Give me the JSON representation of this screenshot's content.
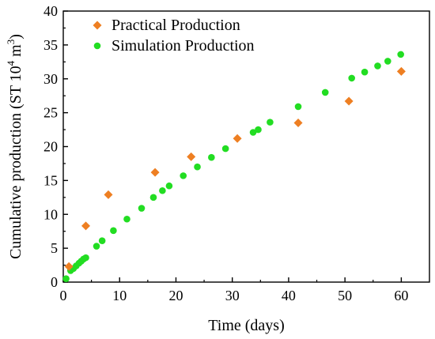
{
  "chart_data": {
    "type": "scatter",
    "xlabel": "Time (days)",
    "ylabel_main": "Cumulative production (ST 10",
    "ylabel_sup": "4",
    "ylabel_rest": " m",
    "ylabel_sup2": "3",
    "ylabel_close": ")",
    "xlim": [
      0,
      65
    ],
    "ylim": [
      0,
      40
    ],
    "x_ticks": [
      0,
      10,
      20,
      30,
      40,
      50,
      60
    ],
    "y_ticks": [
      0,
      5,
      10,
      15,
      20,
      25,
      30,
      35,
      40
    ],
    "grid": false,
    "legend_position": "top-left",
    "series": [
      {
        "name": "Practical Production",
        "marker": "diamond",
        "color": "#ee7f22",
        "points": [
          {
            "x": 1,
            "y": 2.3
          },
          {
            "x": 4,
            "y": 8.3
          },
          {
            "x": 8,
            "y": 12.9
          },
          {
            "x": 16.3,
            "y": 16.2
          },
          {
            "x": 22.7,
            "y": 18.5
          },
          {
            "x": 30.9,
            "y": 21.2
          },
          {
            "x": 41.7,
            "y": 23.5
          },
          {
            "x": 50.7,
            "y": 26.7
          },
          {
            "x": 60,
            "y": 31.1
          }
        ]
      },
      {
        "name": "Simulation Production",
        "marker": "circle",
        "color": "#22dd22",
        "points": [
          {
            "x": 0.5,
            "y": 0.5
          },
          {
            "x": 1.3,
            "y": 1.7
          },
          {
            "x": 1.8,
            "y": 2.0
          },
          {
            "x": 2.3,
            "y": 2.4
          },
          {
            "x": 2.8,
            "y": 2.8
          },
          {
            "x": 3.2,
            "y": 3.1
          },
          {
            "x": 3.6,
            "y": 3.4
          },
          {
            "x": 4.0,
            "y": 3.6
          },
          {
            "x": 5.9,
            "y": 5.3
          },
          {
            "x": 6.9,
            "y": 6.1
          },
          {
            "x": 8.9,
            "y": 7.6
          },
          {
            "x": 11.3,
            "y": 9.3
          },
          {
            "x": 13.9,
            "y": 10.9
          },
          {
            "x": 16.0,
            "y": 12.5
          },
          {
            "x": 17.6,
            "y": 13.5
          },
          {
            "x": 18.8,
            "y": 14.2
          },
          {
            "x": 21.3,
            "y": 15.7
          },
          {
            "x": 23.8,
            "y": 17.0
          },
          {
            "x": 26.3,
            "y": 18.4
          },
          {
            "x": 28.8,
            "y": 19.7
          },
          {
            "x": 33.7,
            "y": 22.1
          },
          {
            "x": 34.6,
            "y": 22.5
          },
          {
            "x": 36.7,
            "y": 23.6
          },
          {
            "x": 41.7,
            "y": 25.9
          },
          {
            "x": 46.5,
            "y": 28.0
          },
          {
            "x": 51.2,
            "y": 30.1
          },
          {
            "x": 53.5,
            "y": 31.0
          },
          {
            "x": 55.8,
            "y": 31.9
          },
          {
            "x": 57.6,
            "y": 32.6
          },
          {
            "x": 59.9,
            "y": 33.6
          }
        ]
      }
    ]
  }
}
